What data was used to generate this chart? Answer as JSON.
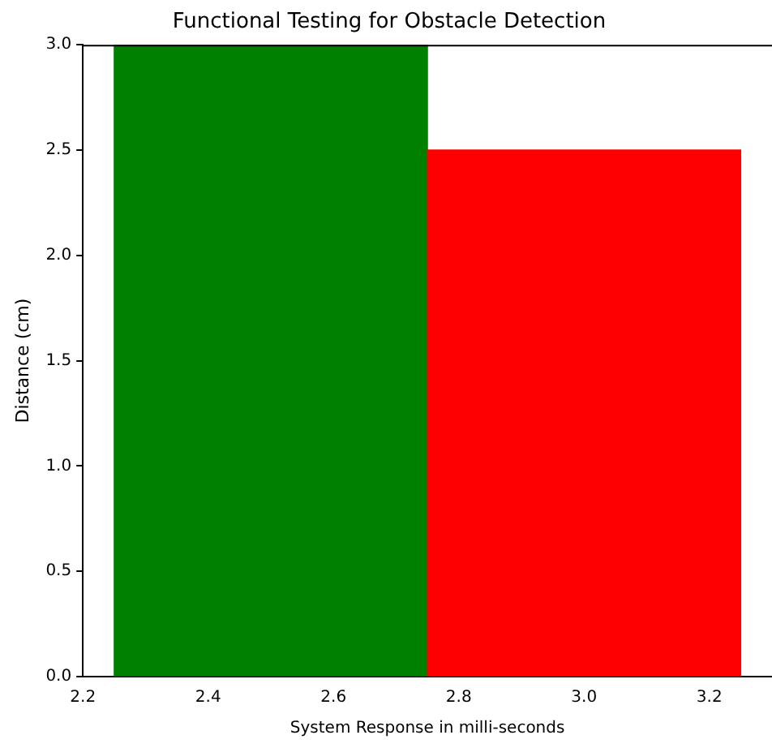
{
  "chart_data": {
    "type": "bar",
    "title": "Functional Testing for Obstacle Detection",
    "xlabel": "System Response in milli-seconds",
    "ylabel": "Distance (cm)",
    "x": [
      2.5,
      3.0
    ],
    "values": [
      3.0,
      2.5
    ],
    "colors": [
      "#008000",
      "#ff0000"
    ],
    "xlim": [
      2.2,
      3.3
    ],
    "xticks": [
      {
        "value": 2.2,
        "label": "2.2"
      },
      {
        "value": 2.4,
        "label": "2.4"
      },
      {
        "value": 2.6,
        "label": "2.6"
      },
      {
        "value": 2.8,
        "label": "2.8"
      },
      {
        "value": 3.0,
        "label": "3.0"
      },
      {
        "value": 3.2,
        "label": "3.2"
      }
    ],
    "ylim": [
      0,
      3.0
    ],
    "yticks": [
      {
        "value": 0,
        "label": "0.0"
      },
      {
        "value": 0.5,
        "label": "0.5"
      },
      {
        "value": 1.0,
        "label": "1.0"
      },
      {
        "value": 1.5,
        "label": "1.5"
      },
      {
        "value": 2.0,
        "label": "2.0"
      },
      {
        "value": 2.5,
        "label": "2.5"
      },
      {
        "value": 3.0,
        "label": "3.0"
      }
    ],
    "grid": false,
    "legend": false
  }
}
